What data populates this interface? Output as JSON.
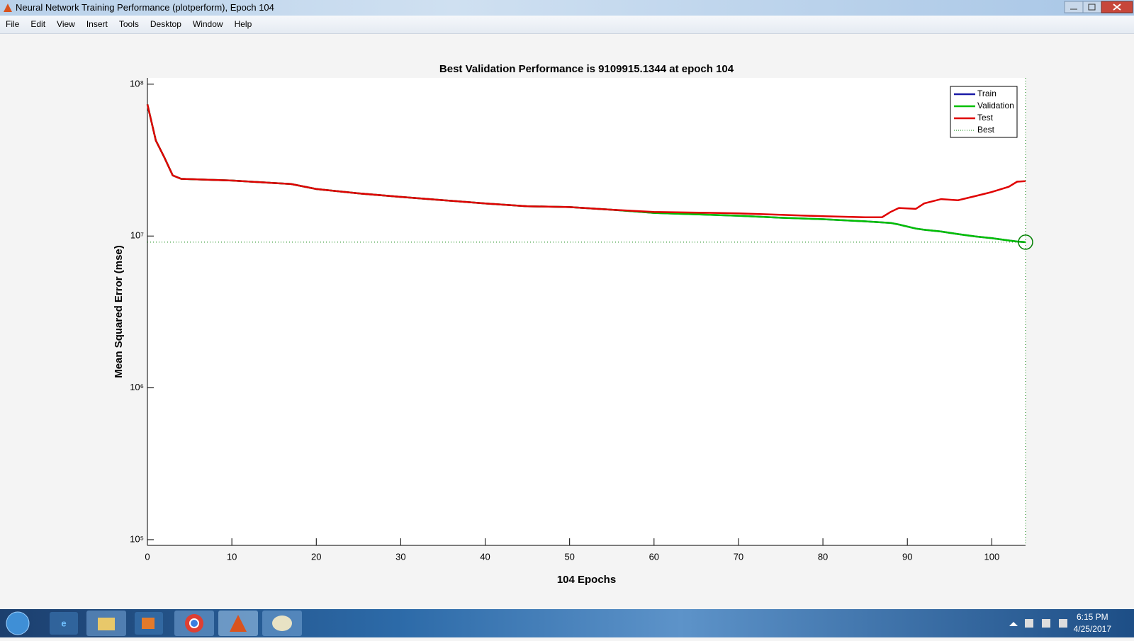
{
  "window": {
    "title": "Neural Network Training Performance (plotperform), Epoch 104",
    "menu": [
      "File",
      "Edit",
      "View",
      "Insert",
      "Tools",
      "Desktop",
      "Window",
      "Help"
    ]
  },
  "taskbar": {
    "time": "6:15 PM",
    "date": "4/25/2017"
  },
  "chart_data": {
    "type": "line",
    "title": "Best Validation Performance is 9109915.1344 at epoch 104",
    "x_label": "104 Epochs",
    "y_label": "Mean Squared Error  (mse)",
    "yscale": "log",
    "xlim": [
      0,
      104
    ],
    "ylim": [
      91700,
      110000000
    ],
    "xticks": [
      0,
      10,
      20,
      30,
      40,
      50,
      60,
      70,
      80,
      90,
      100
    ],
    "yticks": [
      {
        "value": 100000,
        "label": "10⁵"
      },
      {
        "value": 1000000,
        "label": "10⁶"
      },
      {
        "value": 10000000,
        "label": "10⁷"
      },
      {
        "value": 100000000,
        "label": "10⁸"
      }
    ],
    "x": [
      0,
      1,
      2,
      3,
      4,
      10,
      17,
      20,
      25,
      30,
      40,
      45,
      50,
      55,
      60,
      70,
      75,
      80,
      85,
      87,
      88,
      89,
      91,
      92,
      94,
      96,
      98,
      100,
      102,
      103,
      104
    ],
    "series": [
      {
        "name": "Train",
        "color": "#1a1aa6",
        "values": [
          73600000,
          42500000,
          33000000,
          25100000,
          23800000,
          23200000,
          22000000,
          20400000,
          19100000,
          18100000,
          16400000,
          15700000,
          15500000,
          14900000,
          14200000,
          13600000,
          13200000,
          12900000,
          12500000,
          12300000,
          12200000,
          11900000,
          11200000,
          11000000,
          10700000,
          10300000,
          9950000,
          9680000,
          9350000,
          9200000,
          9109915.1344
        ]
      },
      {
        "name": "Validation",
        "color": "#00c000",
        "values": [
          73600000,
          42500000,
          33000000,
          25100000,
          23800000,
          23200000,
          22000000,
          20400000,
          19100000,
          18100000,
          16400000,
          15700000,
          15500000,
          14900000,
          14200000,
          13600000,
          13200000,
          12900000,
          12500000,
          12300000,
          12200000,
          11900000,
          11200000,
          11000000,
          10700000,
          10300000,
          9950000,
          9680000,
          9350000,
          9200000,
          9109915.1344
        ]
      },
      {
        "name": "Test",
        "color": "#e00000",
        "values": [
          73600000,
          42500000,
          33000000,
          25100000,
          23800000,
          23200000,
          22000000,
          20400000,
          19100000,
          18100000,
          16400000,
          15700000,
          15500000,
          14900000,
          14400000,
          14100000,
          13800000,
          13500000,
          13300000,
          13300000,
          14400000,
          15300000,
          15100000,
          16400000,
          17500000,
          17200000,
          18300000,
          19500000,
          21100000,
          22800000,
          23000000
        ]
      }
    ],
    "best": {
      "name": "Best",
      "color": "#008000",
      "epoch": 104,
      "value": 9109915.1344
    },
    "legend": "upper right"
  }
}
